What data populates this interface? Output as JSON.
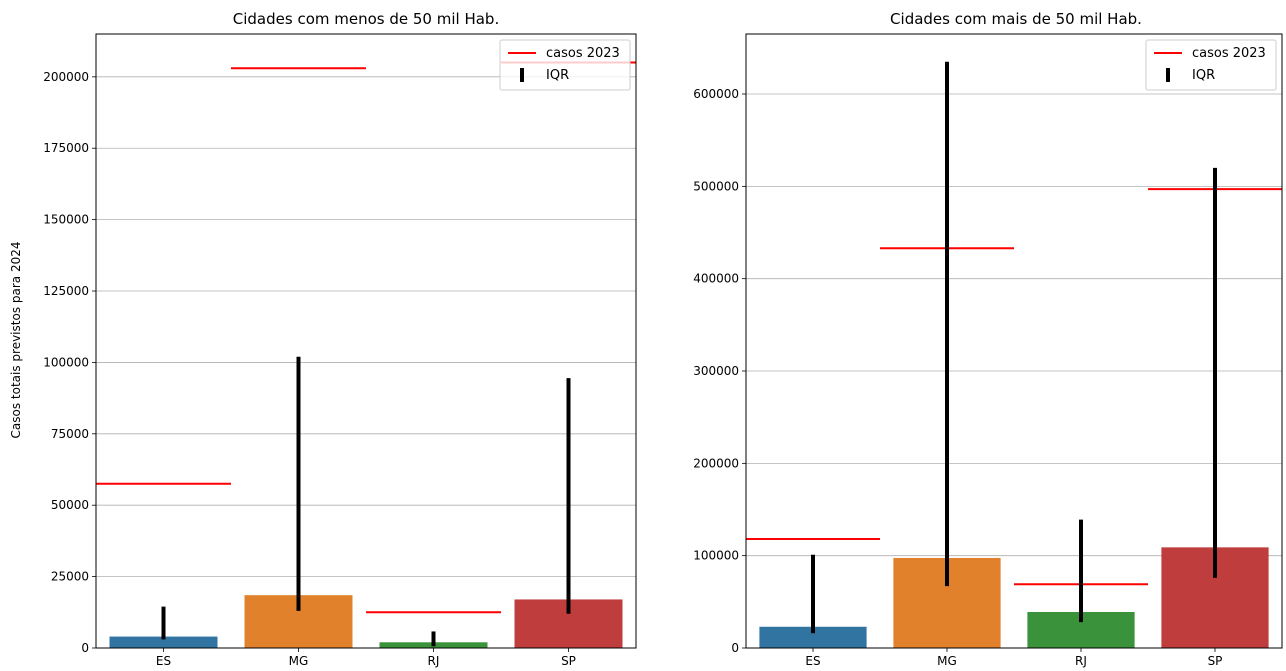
{
  "chart_data": [
    {
      "type": "bar",
      "title": "Cidades com menos de 50 mil Hab.",
      "xlabel": "",
      "ylabel": "Casos totais previstos para 2024",
      "categories": [
        "ES",
        "MG",
        "RJ",
        "SP"
      ],
      "colors": [
        "#3274a1",
        "#e1812c",
        "#3a923a",
        "#c03d3e"
      ],
      "values": [
        4000,
        18500,
        2000,
        17000
      ],
      "iqr": [
        [
          3000,
          14500
        ],
        [
          13000,
          102000
        ],
        [
          600,
          5800
        ],
        [
          12000,
          94500
        ]
      ],
      "casos_2023": [
        57500,
        203000,
        12500,
        205000
      ],
      "ylim": [
        0,
        215000
      ],
      "yticks": [
        0,
        25000,
        50000,
        75000,
        100000,
        125000,
        150000,
        175000,
        200000
      ],
      "ytick_labels": [
        "0",
        "25000",
        "50000",
        "75000",
        "100000",
        "125000",
        "150000",
        "175000",
        "200000"
      ],
      "grid": "y",
      "legend": {
        "position": "top-right",
        "entries": [
          "casos 2023",
          "IQR"
        ]
      }
    },
    {
      "type": "bar",
      "title": "Cidades com mais de 50 mil Hab.",
      "xlabel": "",
      "ylabel": "",
      "categories": [
        "ES",
        "MG",
        "RJ",
        "SP"
      ],
      "colors": [
        "#3274a1",
        "#e1812c",
        "#3a923a",
        "#c03d3e"
      ],
      "values": [
        23000,
        97500,
        39000,
        109000
      ],
      "iqr": [
        [
          16000,
          101000
        ],
        [
          67000,
          635000
        ],
        [
          28000,
          139000
        ],
        [
          76000,
          520000
        ]
      ],
      "casos_2023": [
        118000,
        433000,
        69000,
        497000
      ],
      "ylim": [
        0,
        665000
      ],
      "yticks": [
        0,
        100000,
        200000,
        300000,
        400000,
        500000,
        600000
      ],
      "ytick_labels": [
        "0",
        "100000",
        "200000",
        "300000",
        "400000",
        "500000",
        "600000"
      ],
      "grid": "y",
      "legend": {
        "position": "top-right",
        "entries": [
          "casos 2023",
          "IQR"
        ]
      }
    }
  ]
}
